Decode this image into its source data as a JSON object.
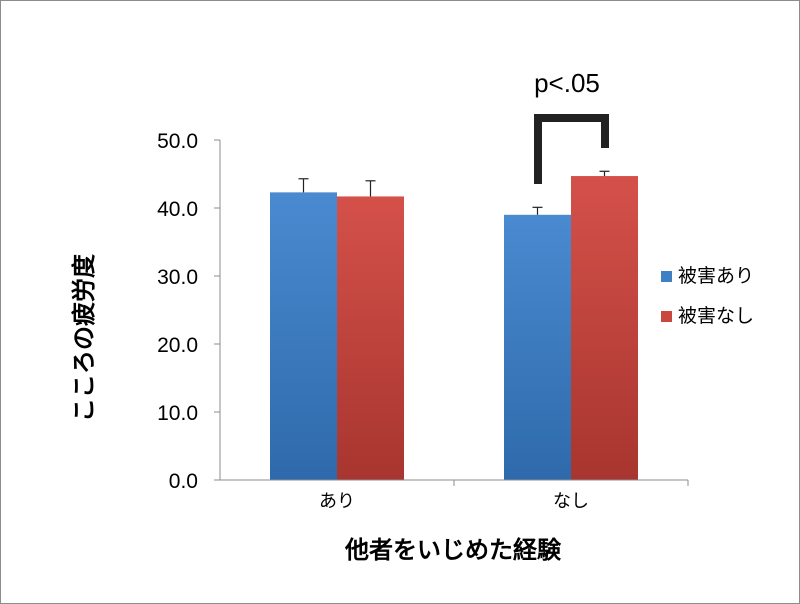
{
  "chart_data": {
    "type": "bar",
    "categories": [
      "あり",
      "なし"
    ],
    "series": [
      {
        "name": "被害あり",
        "values": [
          42.3,
          39.0
        ],
        "errors": [
          2.0,
          1.1
        ],
        "color": "#3f7fc4"
      },
      {
        "name": "被害なし",
        "values": [
          41.7,
          44.7
        ],
        "errors": [
          2.3,
          0.7
        ],
        "color": "#c9473d"
      }
    ],
    "xlabel": "他者をいじめた経験",
    "ylabel": "こころの疲労度",
    "ylim": [
      0,
      50
    ],
    "yticks": [
      "0.0",
      "10.0",
      "20.0",
      "30.0",
      "40.0",
      "50.0"
    ],
    "grid": false,
    "legend": "right",
    "annotation": {
      "text": "p<.05",
      "category_index": 1
    }
  }
}
